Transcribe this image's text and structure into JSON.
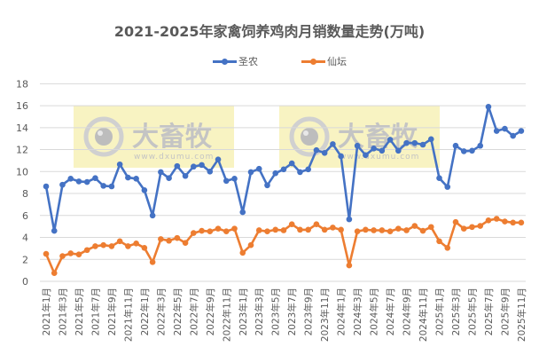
{
  "chart_data": {
    "type": "line",
    "title": "2021-2025年家禽饲养鸡肉月销数量走势(万吨)",
    "xlabel": "",
    "ylabel": "",
    "ylim": [
      0,
      18
    ],
    "yticks": [
      0,
      2,
      4,
      6,
      8,
      10,
      12,
      14,
      16,
      18
    ],
    "grid": true,
    "legend_position": "top",
    "x": [
      "2021年1月",
      "2021年2月",
      "2021年3月",
      "2021年4月",
      "2021年5月",
      "2021年6月",
      "2021年7月",
      "2021年8月",
      "2021年9月",
      "2021年10月",
      "2021年11月",
      "2021年12月",
      "2022年1月",
      "2022年2月",
      "2022年3月",
      "2022年4月",
      "2022年5月",
      "2022年6月",
      "2022年7月",
      "2022年8月",
      "2022年9月",
      "2022年10月",
      "2022年11月",
      "2022年12月",
      "2023年1月",
      "2023年2月",
      "2023年3月",
      "2023年4月",
      "2023年5月",
      "2023年6月",
      "2023年7月",
      "2023年8月",
      "2023年9月",
      "2023年10月",
      "2023年11月",
      "2023年12月",
      "2024年1月",
      "2024年2月",
      "2024年3月",
      "2024年4月",
      "2024年5月",
      "2024年6月",
      "2024年7月",
      "2024年8月",
      "2024年9月",
      "2024年10月",
      "2024年11月",
      "2024年12月",
      "2025年1月",
      "2025年2月",
      "2025年3月",
      "2025年4月",
      "2025年5月",
      "2025年6月",
      "2025年7月",
      "2025年8月",
      "2025年9月",
      "2025年10月",
      "2025年11月"
    ],
    "xtick_labels": [
      "2021年1月",
      "2021年3月",
      "2021年5月",
      "2021年7月",
      "2021年9月",
      "2021年11月",
      "2022年1月",
      "2022年3月",
      "2022年5月",
      "2022年7月",
      "2022年9月",
      "2022年11月",
      "2023年1月",
      "2023年3月",
      "2023年5月",
      "2023年7月",
      "2023年9月",
      "2023年11月",
      "2024年1月",
      "2024年3月",
      "2024年5月",
      "2024年7月",
      "2024年9月",
      "2024年11月",
      "2025年1月",
      "2025年3月",
      "2025年5月",
      "2025年7月",
      "2025年9月",
      "2025年11月"
    ],
    "series": [
      {
        "name": "圣农",
        "color": "#4472C4",
        "values": [
          8.65,
          4.6,
          8.8,
          9.35,
          9.1,
          9.05,
          9.4,
          8.7,
          8.65,
          10.65,
          9.45,
          9.35,
          8.3,
          6.0,
          9.95,
          9.4,
          10.5,
          9.6,
          10.45,
          10.6,
          10.0,
          11.1,
          9.15,
          9.35,
          6.3,
          9.95,
          10.25,
          8.75,
          9.85,
          10.2,
          10.75,
          9.95,
          10.2,
          11.95,
          11.7,
          12.5,
          11.4,
          5.65,
          12.35,
          11.5,
          12.1,
          11.9,
          12.9,
          11.9,
          12.6,
          12.6,
          12.45,
          12.95,
          9.4,
          8.6,
          12.35,
          11.85,
          11.9,
          12.35,
          15.9,
          13.7,
          13.9,
          13.25,
          13.7
        ]
      },
      {
        "name": "仙坛",
        "color": "#ED7D31",
        "values": [
          2.5,
          0.75,
          2.3,
          2.55,
          2.45,
          2.85,
          3.2,
          3.3,
          3.2,
          3.65,
          3.2,
          3.45,
          3.05,
          1.75,
          3.85,
          3.7,
          3.95,
          3.5,
          4.4,
          4.6,
          4.55,
          4.8,
          4.55,
          4.8,
          2.6,
          3.3,
          4.65,
          4.55,
          4.7,
          4.65,
          5.2,
          4.7,
          4.7,
          5.2,
          4.7,
          4.9,
          4.7,
          1.45,
          4.55,
          4.7,
          4.65,
          4.65,
          4.55,
          4.8,
          4.65,
          5.05,
          4.6,
          4.95,
          3.65,
          3.05,
          5.4,
          4.8,
          4.95,
          5.05,
          5.55,
          5.7,
          5.45,
          5.35,
          5.35
        ]
      }
    ]
  },
  "watermark": {
    "text": "大畜牧",
    "url_text": "www.dxumu.com",
    "background": "#F7F1B7"
  },
  "colors": {
    "title": "#595959",
    "axis_text": "#595959",
    "grid": "#D9D9D9"
  }
}
